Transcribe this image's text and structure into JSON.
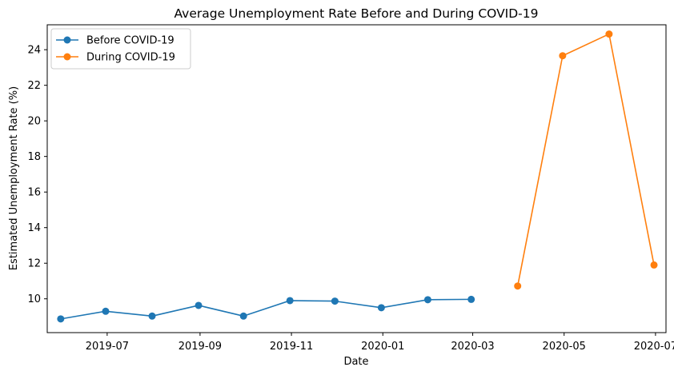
{
  "chart_data": {
    "type": "line",
    "title": "Average Unemployment Rate Before and During COVID-19",
    "xlabel": "Date",
    "ylabel": "Estimated Unemployment Rate (%)",
    "xlim": [
      "2019-05-22",
      "2020-07-08"
    ],
    "ylim": [
      8.1,
      25.4
    ],
    "x_ticks": [
      "2019-07",
      "2019-09",
      "2019-11",
      "2020-01",
      "2020-03",
      "2020-05",
      "2020-07"
    ],
    "y_ticks": [
      10,
      12,
      14,
      16,
      18,
      20,
      22,
      24
    ],
    "grid": false,
    "legend_position": "upper-left",
    "series": [
      {
        "name": "Before COVID-19",
        "color": "#1f77b4",
        "x": [
          "2019-05-31",
          "2019-06-30",
          "2019-07-31",
          "2019-08-31",
          "2019-09-30",
          "2019-10-31",
          "2019-11-30",
          "2019-12-31",
          "2020-01-31",
          "2020-02-29"
        ],
        "values": [
          8.87,
          9.3,
          9.03,
          9.63,
          9.03,
          9.9,
          9.87,
          9.5,
          9.95,
          9.97
        ]
      },
      {
        "name": "During COVID-19",
        "color": "#ff7f0e",
        "x": [
          "2020-03-31",
          "2020-04-30",
          "2020-05-31",
          "2020-06-30"
        ],
        "values": [
          10.72,
          23.66,
          24.88,
          11.9
        ]
      }
    ]
  }
}
